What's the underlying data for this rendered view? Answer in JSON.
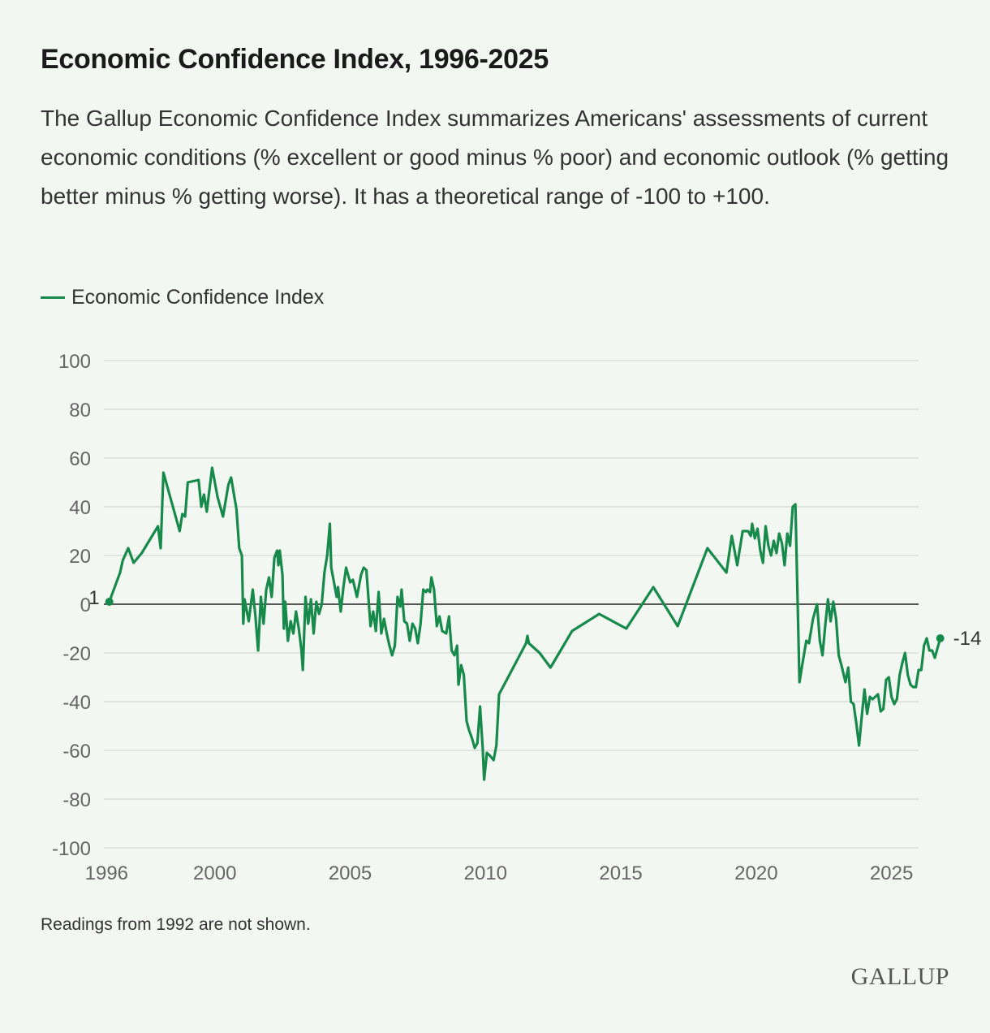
{
  "title": "Economic Confidence Index, 1996-2025",
  "subtitle": "The Gallup Economic Confidence Index summarizes Americans' assessments of current economic conditions (% excellent or good minus % poor) and economic outlook (% getting better minus % getting worse). It has a theoretical range of -100 to +100.",
  "note": "Readings from 1992 are not shown.",
  "logo": "GALLUP",
  "colors": {
    "series": "#178a4b",
    "grid": "#d5d9d4",
    "zero": "#222222",
    "background": "#f3f7f2"
  },
  "chart_data": {
    "type": "line",
    "xlabel": "",
    "ylabel": "",
    "xlim": [
      1995.9,
      2026.0
    ],
    "ylim": [
      -100,
      100
    ],
    "yticks": [
      100,
      80,
      60,
      40,
      20,
      0,
      -20,
      -40,
      -60,
      -80,
      -100
    ],
    "xticks": [
      1996,
      2000,
      2005,
      2010,
      2015,
      2020,
      2025
    ],
    "grid": true,
    "legend_position": "top-left",
    "series": [
      {
        "name": "Economic Confidence Index",
        "first_label": "1",
        "last_label": "-14",
        "points": [
          [
            1996.1,
            1
          ],
          [
            1996.5,
            13
          ],
          [
            1996.6,
            18
          ],
          [
            1996.8,
            23
          ],
          [
            1997.0,
            17
          ],
          [
            1997.3,
            21
          ],
          [
            1997.9,
            32
          ],
          [
            1998.0,
            23
          ],
          [
            1998.1,
            54
          ],
          [
            1998.7,
            30
          ],
          [
            1998.8,
            37
          ],
          [
            1998.9,
            36
          ],
          [
            1999.0,
            50
          ],
          [
            1999.4,
            51
          ],
          [
            1999.5,
            40
          ],
          [
            1999.6,
            45
          ],
          [
            1999.7,
            38
          ],
          [
            1999.9,
            56
          ],
          [
            2000.1,
            44
          ],
          [
            2000.3,
            36
          ],
          [
            2000.5,
            49
          ],
          [
            2000.6,
            52
          ],
          [
            2000.8,
            39
          ],
          [
            2000.9,
            23
          ],
          [
            2001.0,
            20
          ],
          [
            2001.05,
            -8
          ],
          [
            2001.1,
            2
          ],
          [
            2001.25,
            -7
          ],
          [
            2001.4,
            6
          ],
          [
            2001.5,
            -5
          ],
          [
            2001.6,
            -19
          ],
          [
            2001.7,
            3
          ],
          [
            2001.8,
            -8
          ],
          [
            2001.9,
            6
          ],
          [
            2002.0,
            11
          ],
          [
            2002.1,
            3
          ],
          [
            2002.2,
            19
          ],
          [
            2002.3,
            22
          ],
          [
            2002.35,
            16
          ],
          [
            2002.4,
            22
          ],
          [
            2002.5,
            12
          ],
          [
            2002.55,
            -10
          ],
          [
            2002.6,
            1
          ],
          [
            2002.7,
            -15
          ],
          [
            2002.8,
            -7
          ],
          [
            2002.9,
            -12
          ],
          [
            2003.0,
            -3
          ],
          [
            2003.1,
            -10
          ],
          [
            2003.2,
            -19
          ],
          [
            2003.25,
            -27
          ],
          [
            2003.35,
            3
          ],
          [
            2003.45,
            -8
          ],
          [
            2003.55,
            2
          ],
          [
            2003.65,
            -12
          ],
          [
            2003.75,
            1
          ],
          [
            2003.85,
            -4
          ],
          [
            2003.95,
            0
          ],
          [
            2004.05,
            13
          ],
          [
            2004.15,
            20
          ],
          [
            2004.25,
            33
          ],
          [
            2004.3,
            15
          ],
          [
            2004.5,
            3
          ],
          [
            2004.55,
            7
          ],
          [
            2004.65,
            -3
          ],
          [
            2004.75,
            7
          ],
          [
            2004.85,
            15
          ],
          [
            2005.0,
            9
          ],
          [
            2005.1,
            10
          ],
          [
            2005.25,
            3
          ],
          [
            2005.4,
            12
          ],
          [
            2005.5,
            15
          ],
          [
            2005.6,
            14
          ],
          [
            2005.75,
            -9
          ],
          [
            2005.85,
            -3
          ],
          [
            2005.95,
            -11
          ],
          [
            2006.05,
            5
          ],
          [
            2006.15,
            -12
          ],
          [
            2006.25,
            -6
          ],
          [
            2006.35,
            -12
          ],
          [
            2006.45,
            -17
          ],
          [
            2006.55,
            -21
          ],
          [
            2006.65,
            -17
          ],
          [
            2006.75,
            3
          ],
          [
            2006.85,
            -1
          ],
          [
            2006.9,
            6
          ],
          [
            2007.0,
            -7
          ],
          [
            2007.1,
            -8
          ],
          [
            2007.2,
            -15
          ],
          [
            2007.3,
            -8
          ],
          [
            2007.4,
            -10
          ],
          [
            2007.5,
            -16
          ],
          [
            2007.6,
            -8
          ],
          [
            2007.7,
            6
          ],
          [
            2007.8,
            5
          ],
          [
            2007.85,
            6
          ],
          [
            2007.95,
            5
          ],
          [
            2008.0,
            11
          ],
          [
            2008.1,
            6
          ],
          [
            2008.2,
            -9
          ],
          [
            2008.3,
            -5
          ],
          [
            2008.4,
            -11
          ],
          [
            2008.55,
            -12
          ],
          [
            2008.65,
            -5
          ],
          [
            2008.75,
            -19
          ],
          [
            2008.85,
            -21
          ],
          [
            2008.95,
            -17
          ],
          [
            2009.0,
            -33
          ],
          [
            2009.1,
            -25
          ],
          [
            2009.2,
            -29
          ],
          [
            2009.3,
            -48
          ],
          [
            2009.4,
            -52
          ],
          [
            2009.5,
            -55
          ],
          [
            2009.6,
            -59
          ],
          [
            2009.7,
            -57
          ],
          [
            2009.8,
            -42
          ],
          [
            2009.9,
            -60
          ],
          [
            2009.95,
            -72
          ],
          [
            2010.05,
            -61
          ],
          [
            2010.15,
            -62
          ],
          [
            2010.3,
            -64
          ],
          [
            2010.4,
            -58
          ],
          [
            2010.5,
            -37
          ],
          [
            2011.5,
            -16
          ],
          [
            2011.55,
            -13
          ],
          [
            2011.6,
            -16
          ],
          [
            2012.0,
            -20
          ],
          [
            2012.4,
            -26
          ],
          [
            2013.2,
            -11
          ],
          [
            2014.2,
            -4
          ],
          [
            2015.2,
            -10
          ],
          [
            2016.2,
            7
          ],
          [
            2017.1,
            -9
          ],
          [
            2018.2,
            23
          ],
          [
            2018.9,
            13
          ],
          [
            2019.1,
            28
          ],
          [
            2019.2,
            22
          ],
          [
            2019.3,
            16
          ],
          [
            2019.5,
            30
          ],
          [
            2019.7,
            30
          ],
          [
            2019.8,
            28
          ],
          [
            2019.85,
            33
          ],
          [
            2019.95,
            27
          ],
          [
            2020.05,
            31
          ],
          [
            2020.15,
            22
          ],
          [
            2020.25,
            17
          ],
          [
            2020.35,
            32
          ],
          [
            2020.45,
            24
          ],
          [
            2020.55,
            20
          ],
          [
            2020.65,
            26
          ],
          [
            2020.75,
            21
          ],
          [
            2020.85,
            29
          ],
          [
            2020.95,
            25
          ],
          [
            2021.05,
            16
          ],
          [
            2021.15,
            29
          ],
          [
            2021.25,
            24
          ],
          [
            2021.35,
            40
          ],
          [
            2021.45,
            41
          ],
          [
            2021.6,
            -32
          ],
          [
            2021.7,
            -25
          ],
          [
            2021.85,
            -15
          ],
          [
            2021.95,
            -16
          ],
          [
            2022.1,
            -6
          ],
          [
            2022.2,
            -2
          ],
          [
            2022.25,
            0
          ],
          [
            2022.35,
            -15
          ],
          [
            2022.45,
            -21
          ],
          [
            2022.55,
            -9
          ],
          [
            2022.65,
            2
          ],
          [
            2022.75,
            -7
          ],
          [
            2022.85,
            1
          ],
          [
            2022.95,
            -6
          ],
          [
            2023.05,
            -21
          ],
          [
            2023.15,
            -25
          ],
          [
            2023.3,
            -32
          ],
          [
            2023.4,
            -26
          ],
          [
            2023.5,
            -40
          ],
          [
            2023.6,
            -41
          ],
          [
            2023.7,
            -49
          ],
          [
            2023.8,
            -58
          ],
          [
            2023.9,
            -46
          ],
          [
            2024.0,
            -35
          ],
          [
            2024.1,
            -45
          ],
          [
            2024.2,
            -38
          ],
          [
            2024.3,
            -39
          ],
          [
            2024.4,
            -38
          ],
          [
            2024.5,
            -37
          ],
          [
            2024.6,
            -44
          ],
          [
            2024.7,
            -43
          ],
          [
            2024.8,
            -31
          ],
          [
            2024.9,
            -30
          ],
          [
            2025.0,
            -38
          ],
          [
            2025.1,
            -41
          ],
          [
            2025.2,
            -39
          ],
          [
            2025.3,
            -29
          ],
          [
            2025.4,
            -24
          ],
          [
            2025.5,
            -20
          ],
          [
            2025.6,
            -29
          ],
          [
            2025.7,
            -33
          ],
          [
            2025.8,
            -34
          ],
          [
            2025.9,
            -34
          ],
          [
            2026.0,
            -27
          ],
          [
            2026.1,
            -27
          ],
          [
            2026.2,
            -17
          ],
          [
            2026.3,
            -14
          ],
          [
            2026.4,
            -19
          ],
          [
            2026.5,
            -19
          ],
          [
            2026.6,
            -22
          ],
          [
            2026.8,
            -14
          ]
        ]
      }
    ]
  }
}
